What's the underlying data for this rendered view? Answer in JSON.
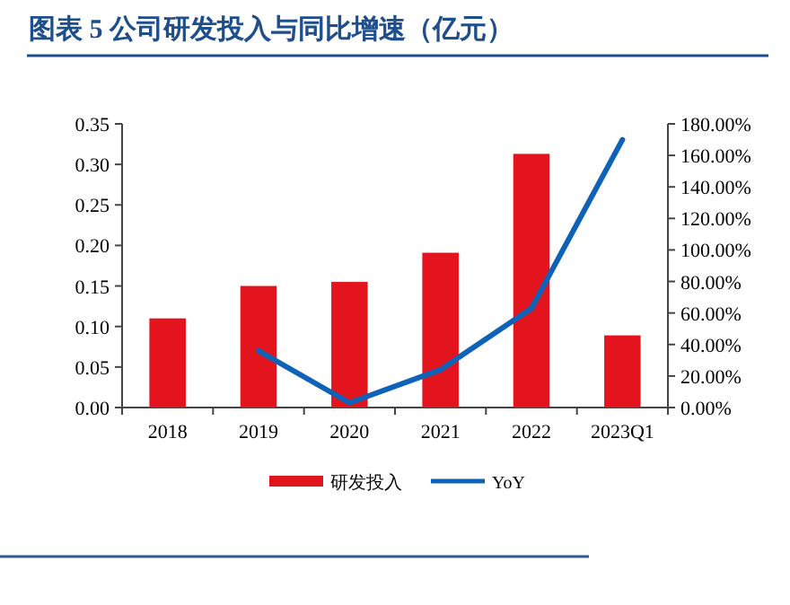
{
  "chart_data": {
    "type": "bar",
    "title": "图表 5   公司研发投入与同比增速（亿元）",
    "categories": [
      "2018",
      "2019",
      "2020",
      "2021",
      "2022",
      "2023Q1"
    ],
    "series": [
      {
        "name": "研发投入",
        "color": "#e3141e",
        "values": [
          0.11,
          0.15,
          0.155,
          0.191,
          0.313,
          0.089
        ]
      },
      {
        "name": "YoY",
        "type": "line",
        "axis": "y2",
        "color": "#0e63b8",
        "values": [
          null,
          36,
          3,
          24,
          63,
          170
        ]
      }
    ],
    "ylim": [
      0,
      0.35
    ],
    "yticks": [
      {
        "value": 0,
        "label": "0.00"
      },
      {
        "value": 0.05,
        "label": "0.05"
      },
      {
        "value": 0.1,
        "label": "0.10"
      },
      {
        "value": 0.15,
        "label": "0.15"
      },
      {
        "value": 0.2,
        "label": "0.20"
      },
      {
        "value": 0.25,
        "label": "0.25"
      },
      {
        "value": 0.3,
        "label": "0.30"
      },
      {
        "value": 0.35,
        "label": "0.35"
      }
    ],
    "y2lim": [
      0,
      180
    ],
    "y2ticks": [
      {
        "value": 0,
        "label": "0.00%"
      },
      {
        "value": 20,
        "label": "20.00%"
      },
      {
        "value": 40,
        "label": "40.00%"
      },
      {
        "value": 60,
        "label": "60.00%"
      },
      {
        "value": 80,
        "label": "80.00%"
      },
      {
        "value": 100,
        "label": "100.00%"
      },
      {
        "value": 120,
        "label": "120.00%"
      },
      {
        "value": 140,
        "label": "140.00%"
      },
      {
        "value": 160,
        "label": "160.00%"
      },
      {
        "value": 180,
        "label": "180.00%"
      }
    ],
    "legend": "bottom",
    "grid": false,
    "marker": "none",
    "line_style": "solid"
  }
}
